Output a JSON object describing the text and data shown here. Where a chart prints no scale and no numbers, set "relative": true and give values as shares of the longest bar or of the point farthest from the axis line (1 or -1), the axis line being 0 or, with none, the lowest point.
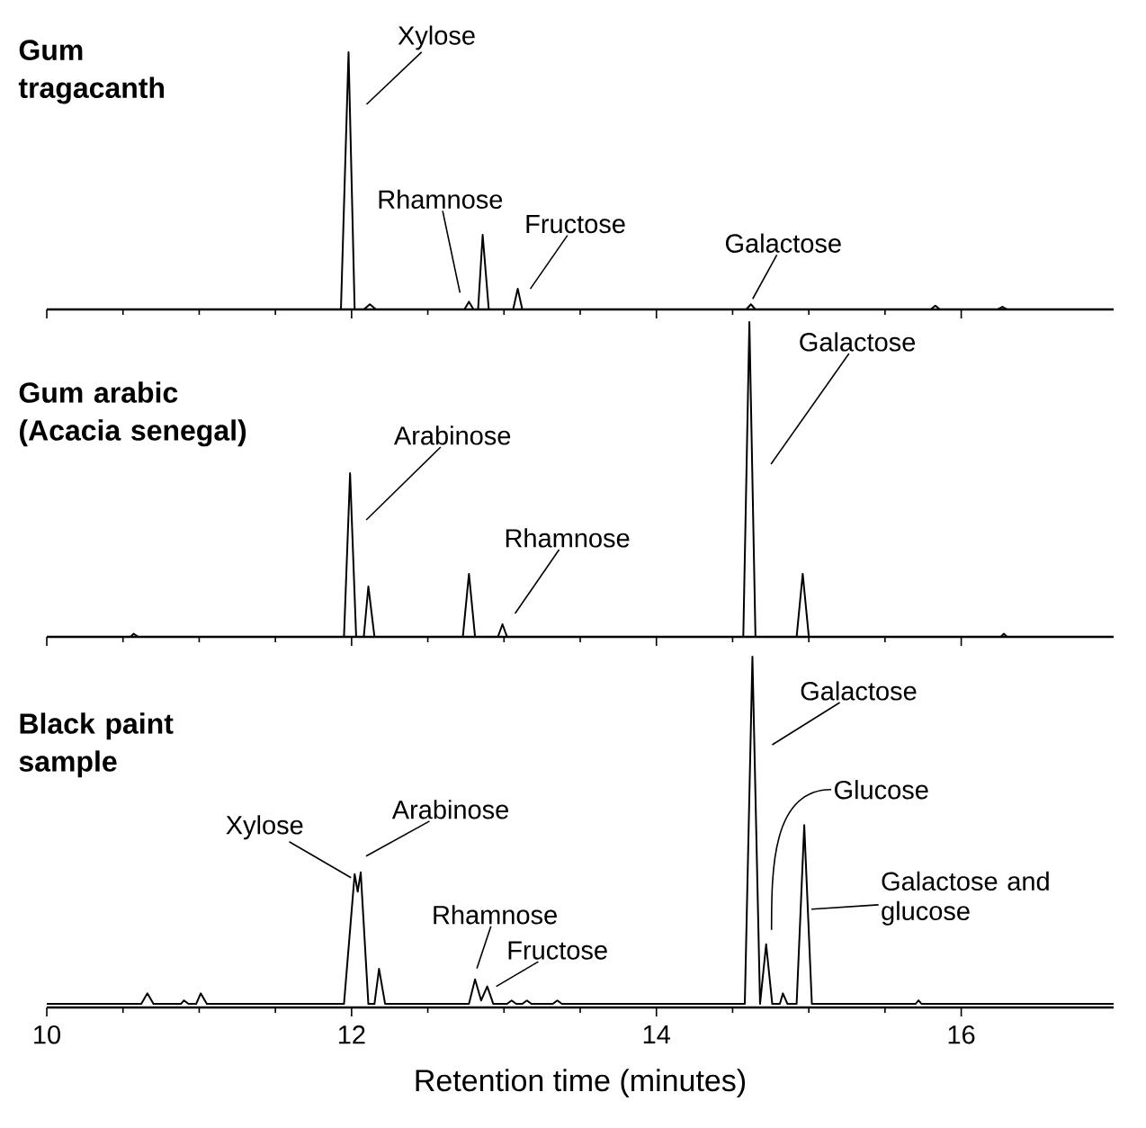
{
  "chart_data": [
    {
      "type": "line",
      "title": "Gum tragacanth",
      "relative": true,
      "xlim": [
        10,
        17
      ],
      "xticks": [
        10,
        12,
        14,
        16
      ],
      "tick_labels": false,
      "series": [
        {
          "color": "#000000",
          "x": [
            10.0,
            11.93,
            11.98,
            12.02,
            12.08,
            12.12,
            12.16,
            12.74,
            12.77,
            12.8,
            12.83,
            12.86,
            12.9,
            13.06,
            13.09,
            13.12,
            14.59,
            14.62,
            14.65,
            15.8,
            15.83,
            15.86,
            16.24,
            16.27,
            16.3,
            17.0
          ],
          "values": [
            0,
            0,
            1,
            0,
            0,
            0.02,
            0,
            0,
            0.03,
            0,
            0,
            0.29,
            0,
            0,
            0.08,
            0,
            0,
            0.02,
            0,
            0,
            0.015,
            0,
            0,
            0.01,
            0,
            0
          ]
        }
      ],
      "annotations": [
        {
          "text": "Xylose",
          "x": 11.98,
          "y": 1
        },
        {
          "text": "Rhamnose",
          "x": 12.77,
          "y": 0.03
        },
        {
          "text": "Fructose",
          "x": 13.09,
          "y": 0.08
        },
        {
          "text": "Galactose",
          "x": 14.62,
          "y": 0.02
        }
      ]
    },
    {
      "type": "line",
      "title": "Gum arabic (Acacia senegal)",
      "relative": true,
      "xlim": [
        10,
        17
      ],
      "xticks": [
        10,
        12,
        14,
        16
      ],
      "tick_labels": false,
      "series": [
        {
          "color": "#000000",
          "x": [
            10.0,
            10.55,
            10.57,
            10.6,
            11.95,
            11.99,
            12.03,
            12.08,
            12.11,
            12.15,
            12.73,
            12.77,
            12.81,
            12.96,
            12.99,
            13.02,
            14.57,
            14.61,
            14.65,
            14.92,
            14.96,
            15.0,
            16.26,
            16.28,
            16.3,
            17.0
          ],
          "values": [
            0,
            0,
            0.01,
            0,
            0,
            0.52,
            0,
            0,
            0.16,
            0,
            0,
            0.2,
            0,
            0,
            0.04,
            0,
            0,
            1,
            0,
            0,
            0.2,
            0,
            0,
            0.01,
            0,
            0
          ]
        }
      ],
      "annotations": [
        {
          "text": "Arabinose",
          "x": 11.99,
          "y": 0.52
        },
        {
          "text": "Rhamnose",
          "x": 12.99,
          "y": 0.04
        },
        {
          "text": "Galactose",
          "x": 14.61,
          "y": 1
        }
      ]
    },
    {
      "type": "line",
      "title": "Black paint sample",
      "xlabel": "Retention time (minutes)",
      "relative": true,
      "xlim": [
        10,
        17
      ],
      "xticks": [
        10,
        12,
        14,
        16
      ],
      "tick_labels": "x",
      "series": [
        {
          "color": "#000000",
          "x": [
            10.0,
            10.62,
            10.66,
            10.7,
            10.88,
            10.9,
            10.93,
            10.98,
            11.01,
            11.05,
            11.95,
            12.02,
            12.04,
            12.06,
            12.11,
            12.15,
            12.18,
            12.22,
            12.77,
            12.81,
            12.85,
            12.89,
            12.93,
            13.02,
            13.05,
            13.08,
            13.12,
            13.15,
            13.18,
            13.32,
            13.35,
            13.38,
            14.58,
            14.63,
            14.68,
            14.72,
            14.76,
            14.81,
            14.83,
            14.86,
            14.92,
            14.97,
            15.02,
            15.7,
            15.72,
            15.74,
            17.0
          ],
          "values": [
            0.01,
            0.01,
            0.04,
            0.01,
            0.01,
            0.02,
            0.01,
            0.01,
            0.04,
            0.01,
            0.01,
            0.38,
            0.33,
            0.385,
            0.01,
            0.01,
            0.11,
            0.01,
            0.01,
            0.08,
            0.02,
            0.06,
            0.01,
            0.01,
            0.02,
            0.01,
            0.01,
            0.02,
            0.01,
            0.01,
            0.02,
            0.01,
            0.01,
            1,
            0.01,
            0.18,
            0.01,
            0.01,
            0.04,
            0.01,
            0.01,
            0.52,
            0.01,
            0.01,
            0.02,
            0.01,
            0.01
          ]
        }
      ],
      "annotations": [
        {
          "text": "Xylose",
          "x": 12.02,
          "y": 0.38
        },
        {
          "text": "Arabinose",
          "x": 12.06,
          "y": 0.385
        },
        {
          "text": "Rhamnose",
          "x": 12.81,
          "y": 0.08
        },
        {
          "text": "Fructose",
          "x": 12.89,
          "y": 0.06
        },
        {
          "text": "Galactose",
          "x": 14.63,
          "y": 1
        },
        {
          "text": "Glucose",
          "x": 14.72,
          "y": 0.18
        },
        {
          "text": "Galactose and glucose",
          "x": 14.97,
          "y": 0.28
        }
      ]
    }
  ]
}
